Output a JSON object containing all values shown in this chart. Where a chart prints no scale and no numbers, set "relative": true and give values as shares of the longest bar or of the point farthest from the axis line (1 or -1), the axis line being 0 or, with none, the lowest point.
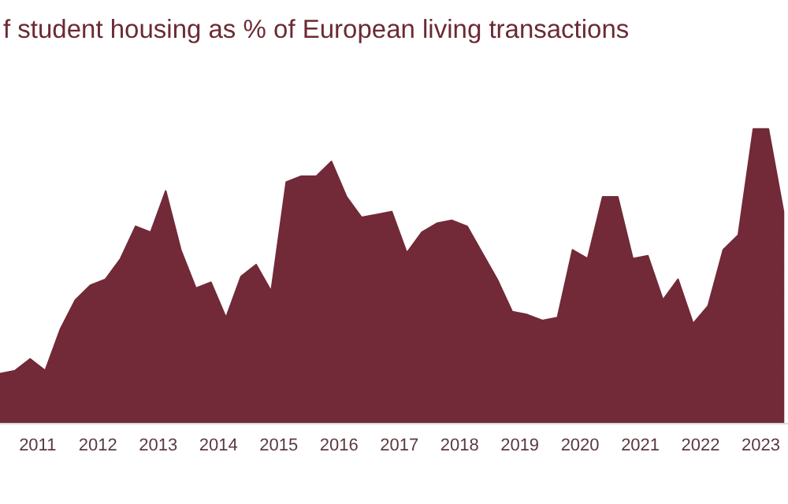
{
  "chart_data": {
    "type": "area",
    "title": "f student housing as % of European living transactions",
    "relative": true,
    "x": [
      2010.375,
      2010.625,
      2010.875,
      2011.125,
      2011.375,
      2011.625,
      2011.875,
      2012.125,
      2012.375,
      2012.625,
      2012.875,
      2013.125,
      2013.375,
      2013.625,
      2013.875,
      2014.125,
      2014.375,
      2014.625,
      2014.875,
      2015.125,
      2015.375,
      2015.625,
      2015.875,
      2016.125,
      2016.375,
      2016.625,
      2016.875,
      2017.125,
      2017.375,
      2017.625,
      2017.875,
      2018.125,
      2018.375,
      2018.625,
      2018.875,
      2019.125,
      2019.375,
      2019.625,
      2019.875,
      2020.125,
      2020.375,
      2020.625,
      2020.875,
      2021.125,
      2021.375,
      2021.625,
      2021.875,
      2022.125,
      2022.375,
      2022.625,
      2022.875,
      2023.125,
      2023.375
    ],
    "series": [
      {
        "color": "#722a38",
        "values": [
          0.17,
          0.18,
          0.22,
          0.18,
          0.32,
          0.42,
          0.47,
          0.49,
          0.56,
          0.67,
          0.65,
          0.79,
          0.59,
          0.46,
          0.48,
          0.36,
          0.5,
          0.54,
          0.45,
          0.82,
          0.84,
          0.84,
          0.89,
          0.77,
          0.7,
          0.71,
          0.72,
          0.58,
          0.65,
          0.68,
          0.69,
          0.67,
          0.58,
          0.49,
          0.38,
          0.37,
          0.35,
          0.36,
          0.59,
          0.56,
          0.77,
          0.77,
          0.56,
          0.57,
          0.42,
          0.49,
          0.34,
          0.4,
          0.59,
          0.64,
          1,
          1,
          0.72
        ]
      }
    ],
    "xlim": [
      2010.375,
      2023.45
    ],
    "xticks": [
      2011,
      2012,
      2013,
      2014,
      2015,
      2016,
      2017,
      2018,
      2019,
      2020,
      2021,
      2022,
      2023
    ]
  }
}
